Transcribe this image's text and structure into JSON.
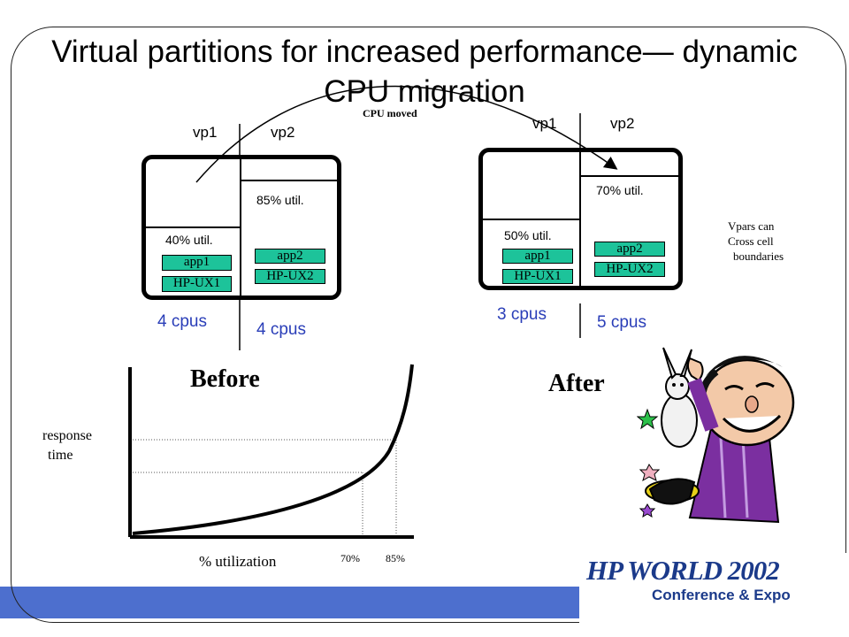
{
  "title": "Virtual partitions for increased performance— dynamic CPU migration",
  "cpu_moved": "CPU moved",
  "before": {
    "heading": "Before",
    "vp1": "vp1",
    "vp2": "vp2",
    "vp1_util": "40% util.",
    "vp2_util": "85% util.",
    "vp1_app": "app1",
    "vp1_os": "HP-UX1",
    "vp2_app": "app2",
    "vp2_os": "HP-UX2",
    "vp1_cpus": "4 cpus",
    "vp2_cpus": "4 cpus"
  },
  "after": {
    "heading": "After",
    "vp1": "vp1",
    "vp2": "vp2",
    "vp1_util": "50% util.",
    "vp2_util": "70% util.",
    "vp1_app": "app1",
    "vp1_os": "HP-UX1",
    "vp2_app": "app2",
    "vp2_os": "HP-UX2",
    "vp1_cpus": "3 cpus",
    "vp2_cpus": "5 cpus"
  },
  "note": [
    "Vpars can",
    "Cross cell",
    "boundaries"
  ],
  "curve": {
    "ylabel": [
      "response",
      "time"
    ],
    "xlabel": "% utilization",
    "markers": [
      "70%",
      "85%"
    ]
  },
  "logo": {
    "name": "HP WORLD 2002",
    "subtitle": "Conference & Expo"
  },
  "colors": {
    "accent_bar": "#4d6fce",
    "tag_fill": "#1dc39a",
    "cpus_text": "#2a3eb8"
  }
}
